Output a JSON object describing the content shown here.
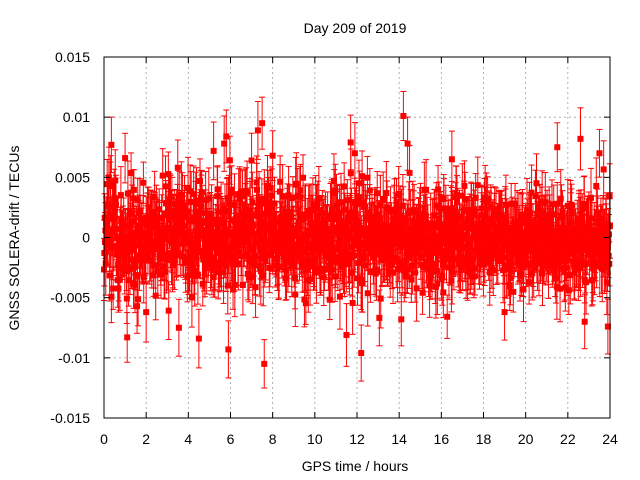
{
  "chart_data": {
    "type": "scatter",
    "title": "Day 209 of 2019",
    "xlabel": "GPS time / hours",
    "ylabel": "GNSS SOLERA-drift / TECUs",
    "xlim": [
      0,
      24
    ],
    "ylim": [
      -0.015,
      0.015
    ],
    "x_ticks": [
      "0",
      "2",
      "4",
      "6",
      "8",
      "10",
      "12",
      "14",
      "16",
      "18",
      "20",
      "22",
      "24"
    ],
    "y_ticks": [
      "-0.015",
      "-0.01",
      "-0.005",
      "0",
      "0.005",
      "0.01",
      "0.015"
    ],
    "grid": true,
    "series": [
      {
        "name": "SOLERA drift",
        "color": "#ff0000",
        "marker": "square",
        "error_bars": true,
        "typical_error": 0.0022,
        "noise_std": 0.0027,
        "n_points": 1440,
        "notable_points": [
          {
            "x": 0.35,
            "y": 0.0077
          },
          {
            "x": 1.0,
            "y": 0.0066
          },
          {
            "x": 1.1,
            "y": -0.0083
          },
          {
            "x": 2.0,
            "y": -0.0062
          },
          {
            "x": 3.5,
            "y": 0.0058
          },
          {
            "x": 4.5,
            "y": -0.0084
          },
          {
            "x": 5.2,
            "y": 0.0072
          },
          {
            "x": 5.7,
            "y": 0.0078
          },
          {
            "x": 5.8,
            "y": 0.0084
          },
          {
            "x": 5.9,
            "y": -0.0093
          },
          {
            "x": 7.0,
            "y": 0.0064
          },
          {
            "x": 7.3,
            "y": 0.0089
          },
          {
            "x": 7.5,
            "y": 0.0095
          },
          {
            "x": 7.6,
            "y": -0.0105
          },
          {
            "x": 8.0,
            "y": 0.0068
          },
          {
            "x": 11.5,
            "y": -0.0081
          },
          {
            "x": 11.7,
            "y": 0.0079
          },
          {
            "x": 11.9,
            "y": 0.007
          },
          {
            "x": 12.2,
            "y": -0.0096
          },
          {
            "x": 14.2,
            "y": 0.0101
          },
          {
            "x": 14.4,
            "y": 0.0078
          },
          {
            "x": 14.1,
            "y": -0.0068
          },
          {
            "x": 16.5,
            "y": 0.0065
          },
          {
            "x": 19.0,
            "y": -0.0062
          },
          {
            "x": 21.5,
            "y": 0.0075
          },
          {
            "x": 22.6,
            "y": 0.0082
          },
          {
            "x": 22.8,
            "y": -0.007
          },
          {
            "x": 23.5,
            "y": 0.007
          },
          {
            "x": 23.9,
            "y": -0.0074
          }
        ]
      }
    ]
  }
}
